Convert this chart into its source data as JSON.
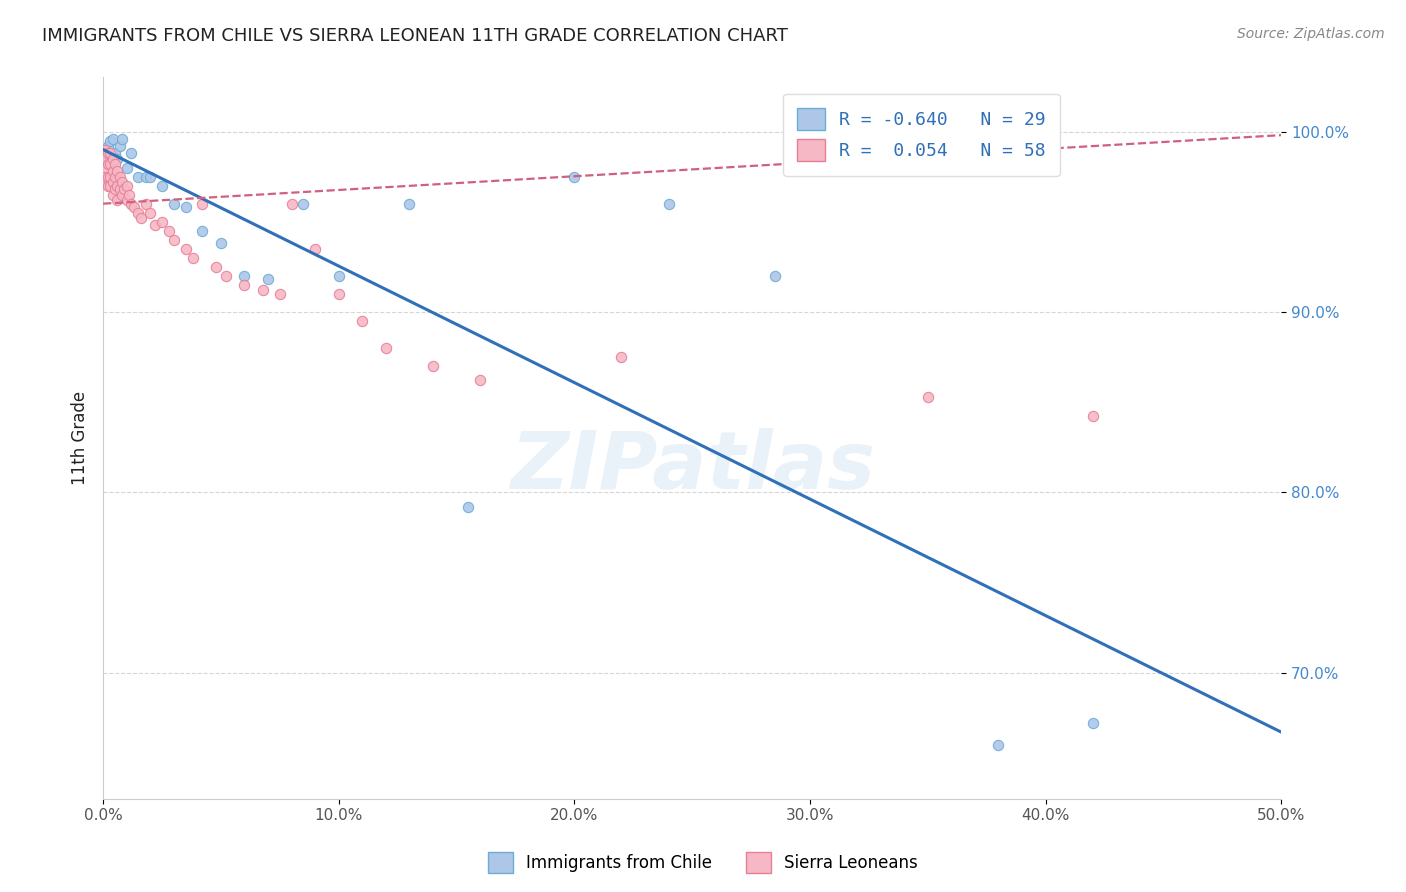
{
  "title": "IMMIGRANTS FROM CHILE VS SIERRA LEONEAN 11TH GRADE CORRELATION CHART",
  "source": "Source: ZipAtlas.com",
  "ylabel": "11th Grade",
  "xmin": 0.0,
  "xmax": 0.5,
  "ymin": 0.63,
  "ymax": 1.03,
  "yticks": [
    0.7,
    0.8,
    0.9,
    1.0
  ],
  "ytick_labels": [
    "70.0%",
    "80.0%",
    "90.0%",
    "100.0%"
  ],
  "xticks": [
    0.0,
    0.1,
    0.2,
    0.3,
    0.4,
    0.5
  ],
  "xtick_labels": [
    "0.0%",
    "10.0%",
    "20.0%",
    "30.0%",
    "40.0%",
    "50.0%"
  ],
  "legend_entries": [
    {
      "color": "#aec6e8",
      "edge": "#6aaed6",
      "label": "R = -0.640   N = 29"
    },
    {
      "color": "#f5b8c4",
      "edge": "#e87f99",
      "label": "R =  0.054   N = 58"
    }
  ],
  "blue_scatter_x": [
    0.001,
    0.002,
    0.003,
    0.004,
    0.005,
    0.006,
    0.007,
    0.008,
    0.01,
    0.012,
    0.015,
    0.018,
    0.02,
    0.025,
    0.03,
    0.035,
    0.042,
    0.05,
    0.06,
    0.07,
    0.085,
    0.1,
    0.13,
    0.155,
    0.2,
    0.24,
    0.285,
    0.38,
    0.42
  ],
  "blue_scatter_y": [
    0.988,
    0.992,
    0.995,
    0.996,
    0.988,
    0.985,
    0.992,
    0.996,
    0.98,
    0.988,
    0.975,
    0.975,
    0.975,
    0.97,
    0.96,
    0.958,
    0.945,
    0.938,
    0.92,
    0.918,
    0.96,
    0.92,
    0.96,
    0.792,
    0.975,
    0.96,
    0.92,
    0.66,
    0.672
  ],
  "pink_scatter_x": [
    0.001,
    0.001,
    0.001,
    0.001,
    0.002,
    0.002,
    0.002,
    0.002,
    0.003,
    0.003,
    0.003,
    0.003,
    0.004,
    0.004,
    0.004,
    0.004,
    0.005,
    0.005,
    0.005,
    0.006,
    0.006,
    0.006,
    0.007,
    0.007,
    0.008,
    0.008,
    0.009,
    0.01,
    0.01,
    0.011,
    0.012,
    0.013,
    0.015,
    0.016,
    0.018,
    0.02,
    0.022,
    0.025,
    0.028,
    0.03,
    0.035,
    0.038,
    0.042,
    0.048,
    0.052,
    0.06,
    0.068,
    0.075,
    0.08,
    0.09,
    0.1,
    0.11,
    0.12,
    0.14,
    0.16,
    0.22,
    0.35,
    0.42
  ],
  "pink_scatter_y": [
    0.99,
    0.985,
    0.98,
    0.975,
    0.988,
    0.982,
    0.975,
    0.97,
    0.988,
    0.982,
    0.975,
    0.97,
    0.985,
    0.978,
    0.972,
    0.965,
    0.982,
    0.975,
    0.968,
    0.978,
    0.97,
    0.962,
    0.975,
    0.968,
    0.972,
    0.965,
    0.968,
    0.97,
    0.962,
    0.965,
    0.96,
    0.958,
    0.955,
    0.952,
    0.96,
    0.955,
    0.948,
    0.95,
    0.945,
    0.94,
    0.935,
    0.93,
    0.96,
    0.925,
    0.92,
    0.915,
    0.912,
    0.91,
    0.96,
    0.935,
    0.91,
    0.895,
    0.88,
    0.87,
    0.862,
    0.875,
    0.853,
    0.842
  ],
  "blue_line_x0": 0.0,
  "blue_line_x1": 0.5,
  "blue_line_y0": 0.99,
  "blue_line_y1": 0.667,
  "pink_line_x0": 0.0,
  "pink_line_x1": 0.5,
  "pink_line_y0": 0.96,
  "pink_line_y1": 0.998,
  "scatter_size": 55,
  "blue_scatter_color": "#aec6e8",
  "blue_scatter_edge": "#6aaed6",
  "pink_scatter_color": "#f5b8c4",
  "pink_scatter_edge": "#e87f99",
  "blue_line_color": "#3070b8",
  "pink_line_color": "#d06080",
  "watermark": "ZIPatlas",
  "background_color": "#ffffff",
  "grid_color": "#cccccc",
  "title_color": "#222222",
  "source_color": "#888888",
  "ytick_color": "#4488cc",
  "xtick_color": "#555555"
}
